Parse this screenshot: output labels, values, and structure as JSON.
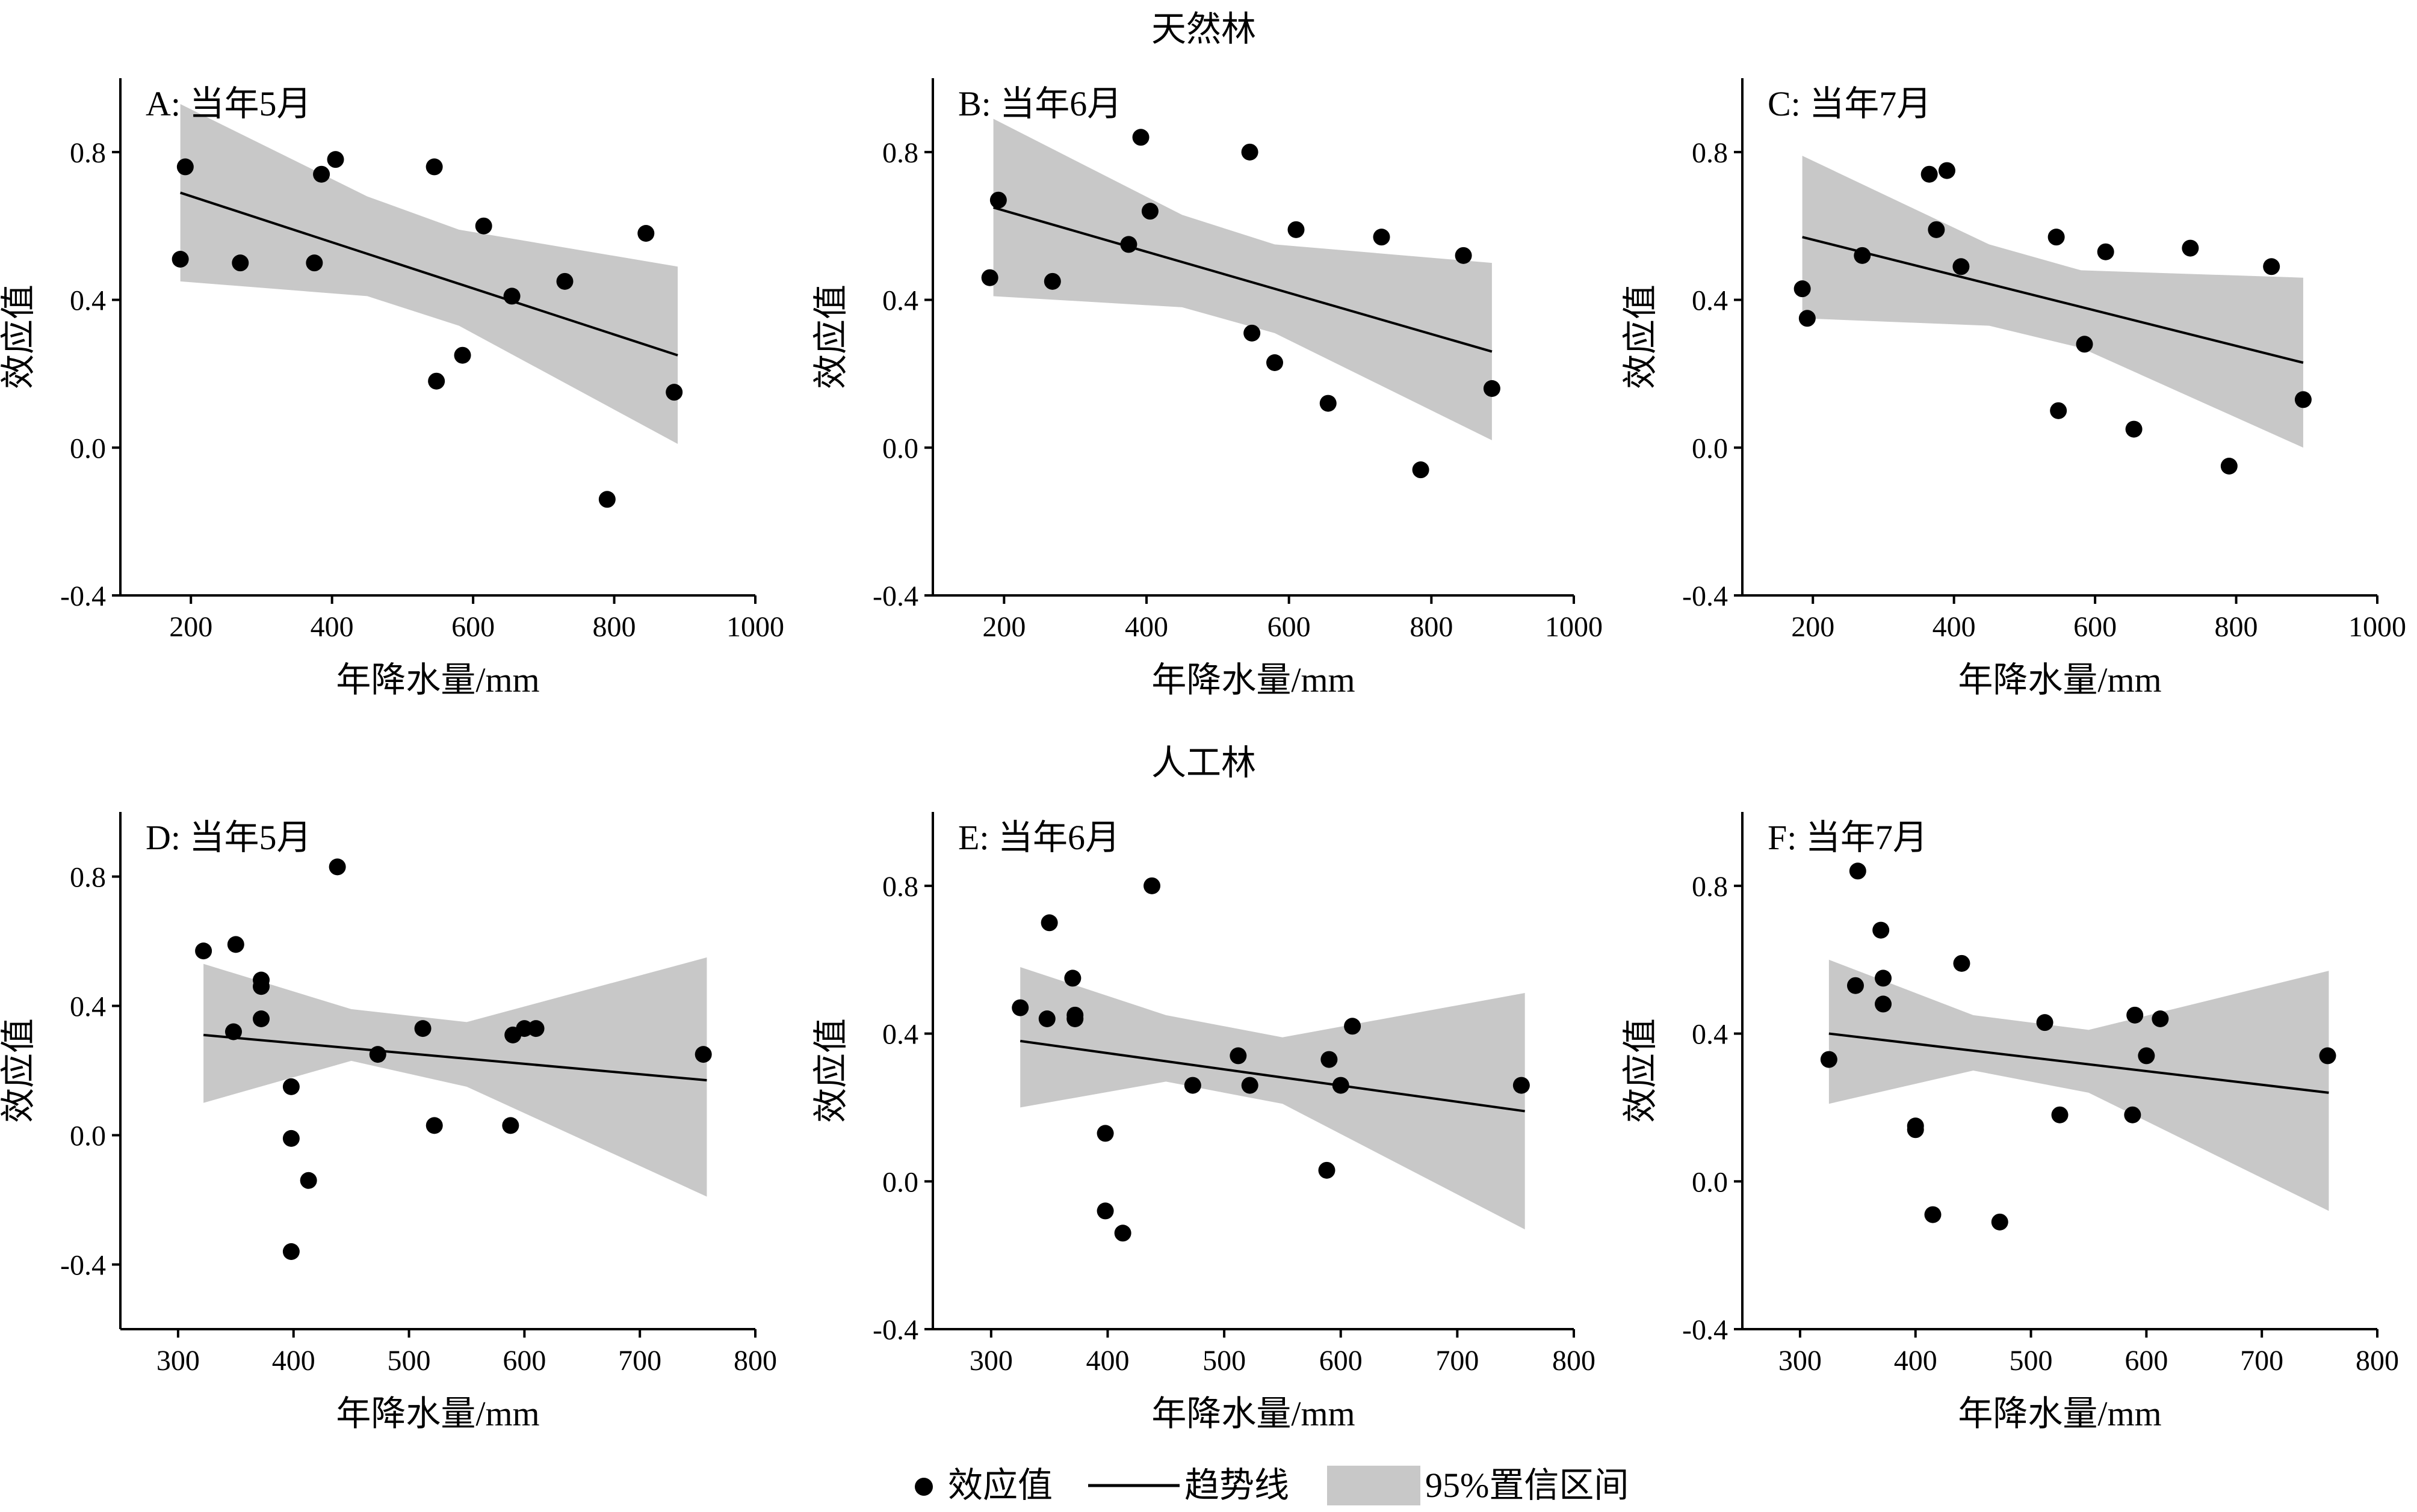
{
  "group_titles": [
    "天然林",
    "人工林"
  ],
  "legend": {
    "points_label": "效应值",
    "trend_label": "趋势线",
    "ci_label": "95%置信区间",
    "colors": {
      "point": "#000000",
      "trend": "#000000",
      "ci": "#c8c8c8"
    }
  },
  "chart_data": [
    {
      "type": "scatter",
      "group": "天然林",
      "title": "A: 当年5月",
      "xlabel": "年降水量/mm",
      "ylabel": "效应值",
      "xlim": [
        100,
        1000
      ],
      "ylim": [
        -0.4,
        1.0
      ],
      "xticks": [
        200,
        400,
        600,
        800,
        1000
      ],
      "yticks": [
        -0.4,
        0.0,
        0.4,
        0.8
      ],
      "points": [
        [
          185,
          0.51
        ],
        [
          192,
          0.76
        ],
        [
          270,
          0.5
        ],
        [
          375,
          0.5
        ],
        [
          385,
          0.74
        ],
        [
          405,
          0.78
        ],
        [
          545,
          0.76
        ],
        [
          548,
          0.18
        ],
        [
          585,
          0.25
        ],
        [
          615,
          0.6
        ],
        [
          655,
          0.41
        ],
        [
          730,
          0.45
        ],
        [
          790,
          -0.14
        ],
        [
          845,
          0.58
        ],
        [
          885,
          0.15
        ]
      ],
      "trend": {
        "x": [
          185,
          890
        ],
        "y": [
          0.69,
          0.25
        ]
      },
      "ci": {
        "x": [
          185,
          450,
          580,
          890
        ],
        "upper": [
          0.93,
          0.68,
          0.59,
          0.49
        ],
        "lower": [
          0.45,
          0.41,
          0.33,
          0.01
        ]
      }
    },
    {
      "type": "scatter",
      "group": "天然林",
      "title": "B: 当年6月",
      "xlabel": "年降水量/mm",
      "ylabel": "效应值",
      "xlim": [
        100,
        1000
      ],
      "ylim": [
        -0.4,
        1.0
      ],
      "xticks": [
        200,
        400,
        600,
        800,
        1000
      ],
      "yticks": [
        -0.4,
        0.0,
        0.4,
        0.8
      ],
      "points": [
        [
          180,
          0.46
        ],
        [
          192,
          0.67
        ],
        [
          268,
          0.45
        ],
        [
          375,
          0.55
        ],
        [
          392,
          0.84
        ],
        [
          405,
          0.64
        ],
        [
          545,
          0.8
        ],
        [
          548,
          0.31
        ],
        [
          580,
          0.23
        ],
        [
          610,
          0.59
        ],
        [
          655,
          0.12
        ],
        [
          730,
          0.57
        ],
        [
          785,
          -0.06
        ],
        [
          845,
          0.52
        ],
        [
          885,
          0.16
        ]
      ],
      "trend": {
        "x": [
          185,
          885
        ],
        "y": [
          0.65,
          0.26
        ]
      },
      "ci": {
        "x": [
          185,
          450,
          580,
          885
        ],
        "upper": [
          0.89,
          0.63,
          0.55,
          0.5
        ],
        "lower": [
          0.41,
          0.38,
          0.31,
          0.02
        ]
      }
    },
    {
      "type": "scatter",
      "group": "天然林",
      "title": "C: 当年7月",
      "xlabel": "年降水量/mm",
      "ylabel": "效应值",
      "xlim": [
        100,
        1000
      ],
      "ylim": [
        -0.4,
        1.0
      ],
      "xticks": [
        200,
        400,
        600,
        800,
        1000
      ],
      "yticks": [
        -0.4,
        0.0,
        0.4,
        0.8
      ],
      "points": [
        [
          185,
          0.43
        ],
        [
          192,
          0.35
        ],
        [
          270,
          0.52
        ],
        [
          365,
          0.74
        ],
        [
          375,
          0.59
        ],
        [
          390,
          0.75
        ],
        [
          410,
          0.49
        ],
        [
          545,
          0.57
        ],
        [
          548,
          0.1
        ],
        [
          585,
          0.28
        ],
        [
          615,
          0.53
        ],
        [
          655,
          0.05
        ],
        [
          735,
          0.54
        ],
        [
          790,
          -0.05
        ],
        [
          850,
          0.49
        ],
        [
          895,
          0.13
        ]
      ],
      "trend": {
        "x": [
          185,
          895
        ],
        "y": [
          0.57,
          0.23
        ]
      },
      "ci": {
        "x": [
          185,
          450,
          580,
          895
        ],
        "upper": [
          0.79,
          0.55,
          0.48,
          0.46
        ],
        "lower": [
          0.35,
          0.33,
          0.27,
          0.0
        ]
      }
    },
    {
      "type": "scatter",
      "group": "人工林",
      "title": "D: 当年5月",
      "xlabel": "年降水量/mm",
      "ylabel": "效应值",
      "xlim": [
        250,
        800
      ],
      "ylim": [
        -0.6,
        1.0
      ],
      "xticks": [
        300,
        400,
        500,
        600,
        700,
        800
      ],
      "yticks": [
        -0.4,
        0.0,
        0.4,
        0.8
      ],
      "points": [
        [
          322,
          0.57
        ],
        [
          348,
          0.32
        ],
        [
          350,
          0.59
        ],
        [
          372,
          0.48
        ],
        [
          372,
          0.46
        ],
        [
          372,
          0.36
        ],
        [
          398,
          0.15
        ],
        [
          398,
          -0.01
        ],
        [
          398,
          -0.36
        ],
        [
          413,
          -0.14
        ],
        [
          438,
          0.83
        ],
        [
          473,
          0.25
        ],
        [
          512,
          0.33
        ],
        [
          522,
          0.03
        ],
        [
          588,
          0.03
        ],
        [
          590,
          0.31
        ],
        [
          600,
          0.33
        ],
        [
          610,
          0.33
        ],
        [
          755,
          0.25
        ]
      ],
      "trend": {
        "x": [
          322,
          758
        ],
        "y": [
          0.31,
          0.17
        ]
      },
      "ci": {
        "x": [
          322,
          450,
          550,
          758
        ],
        "upper": [
          0.53,
          0.39,
          0.35,
          0.55
        ],
        "lower": [
          0.1,
          0.23,
          0.15,
          -0.19
        ]
      }
    },
    {
      "type": "scatter",
      "group": "人工林",
      "title": "E: 当年6月",
      "xlabel": "年降水量/mm",
      "ylabel": "效应值",
      "xlim": [
        250,
        800
      ],
      "ylim": [
        -0.4,
        1.0
      ],
      "xticks": [
        300,
        400,
        500,
        600,
        700,
        800
      ],
      "yticks": [
        -0.4,
        0.0,
        0.4,
        0.8
      ],
      "points": [
        [
          325,
          0.47
        ],
        [
          348,
          0.44
        ],
        [
          350,
          0.7
        ],
        [
          370,
          0.55
        ],
        [
          372,
          0.45
        ],
        [
          372,
          0.44
        ],
        [
          398,
          0.13
        ],
        [
          398,
          -0.08
        ],
        [
          413,
          -0.14
        ],
        [
          438,
          0.8
        ],
        [
          473,
          0.26
        ],
        [
          512,
          0.34
        ],
        [
          522,
          0.26
        ],
        [
          588,
          0.03
        ],
        [
          590,
          0.33
        ],
        [
          600,
          0.26
        ],
        [
          610,
          0.42
        ],
        [
          755,
          0.26
        ]
      ],
      "trend": {
        "x": [
          325,
          758
        ],
        "y": [
          0.38,
          0.19
        ]
      },
      "ci": {
        "x": [
          325,
          450,
          550,
          758
        ],
        "upper": [
          0.58,
          0.45,
          0.39,
          0.51
        ],
        "lower": [
          0.2,
          0.27,
          0.21,
          -0.13
        ]
      }
    },
    {
      "type": "scatter",
      "group": "人工林",
      "title": "F: 当年7月",
      "xlabel": "年降水量/mm",
      "ylabel": "效应值",
      "xlim": [
        250,
        800
      ],
      "ylim": [
        -0.4,
        1.0
      ],
      "xticks": [
        300,
        400,
        500,
        600,
        700,
        800
      ],
      "yticks": [
        -0.4,
        0.0,
        0.4,
        0.8
      ],
      "points": [
        [
          325,
          0.33
        ],
        [
          348,
          0.53
        ],
        [
          350,
          0.84
        ],
        [
          370,
          0.68
        ],
        [
          372,
          0.55
        ],
        [
          372,
          0.48
        ],
        [
          400,
          0.15
        ],
        [
          400,
          0.14
        ],
        [
          415,
          -0.09
        ],
        [
          440,
          0.59
        ],
        [
          473,
          -0.11
        ],
        [
          512,
          0.43
        ],
        [
          525,
          0.18
        ],
        [
          588,
          0.18
        ],
        [
          590,
          0.45
        ],
        [
          600,
          0.34
        ],
        [
          612,
          0.44
        ],
        [
          757,
          0.34
        ]
      ],
      "trend": {
        "x": [
          325,
          758
        ],
        "y": [
          0.4,
          0.24
        ]
      },
      "ci": {
        "x": [
          325,
          450,
          550,
          758
        ],
        "upper": [
          0.6,
          0.45,
          0.41,
          0.57
        ],
        "lower": [
          0.21,
          0.3,
          0.24,
          -0.08
        ]
      }
    }
  ]
}
